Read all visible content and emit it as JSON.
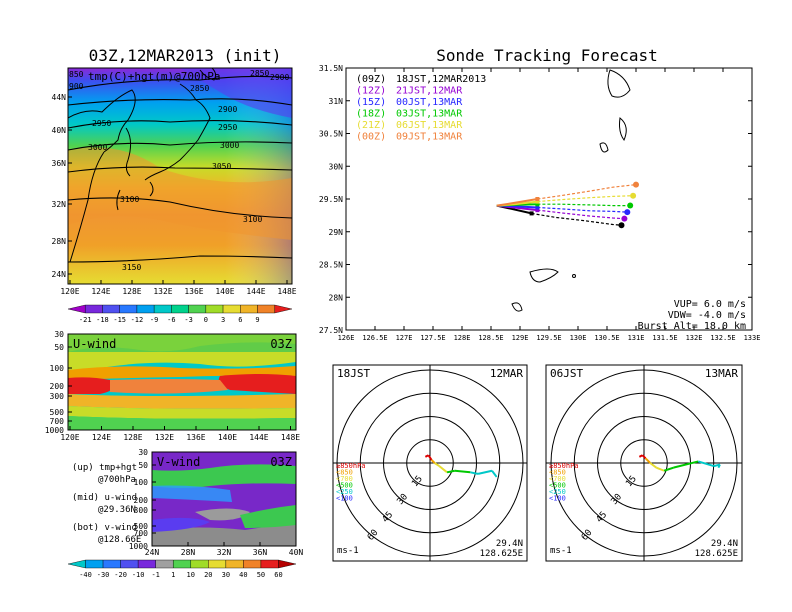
{
  "titles": {
    "left": "03Z,12MAR2013 (init)",
    "right": "Sonde Tracking Forecast"
  },
  "map_panel": {
    "subtitle": "tmp(C)+hgt(m)@700hPa",
    "lat_labels": [
      "44N",
      "40N",
      "36N",
      "32N",
      "28N",
      "24N"
    ],
    "lon_labels": [
      "120E",
      "124E",
      "128E",
      "132E",
      "136E",
      "140E",
      "144E",
      "148E"
    ],
    "contour_labels": [
      "2850",
      "2900",
      "2950",
      "2950",
      "3000",
      "3000",
      "3050",
      "3100",
      "3100",
      "3150",
      "2850",
      "2900"
    ],
    "corner_labels": [
      "850",
      "900"
    ],
    "colorbar_labels": [
      "-21",
      "-18",
      "-15",
      "-12",
      "-9",
      "-6",
      "-3",
      "0",
      "3",
      "6",
      "9"
    ]
  },
  "uwind_panel": {
    "title": "U-wind",
    "time": "03Z",
    "p_labels": [
      "30",
      "50",
      "100",
      "200",
      "300",
      "500",
      "700",
      "1000"
    ],
    "lon_labels": [
      "120E",
      "124E",
      "128E",
      "132E",
      "136E",
      "140E",
      "144E",
      "148E"
    ]
  },
  "vwind_panel": {
    "title": "V-wind",
    "time": "03Z",
    "p_labels": [
      "30",
      "50",
      "100",
      "200",
      "300",
      "500",
      "700",
      "1000"
    ],
    "lat_labels": [
      "24N",
      "28N",
      "32N",
      "36N",
      "40N"
    ],
    "colorbar_labels": [
      "-40",
      "-30",
      "-20",
      "-10",
      "-1",
      "1",
      "10",
      "20",
      "30",
      "40",
      "50",
      "60"
    ]
  },
  "footnote": {
    "lines": [
      [
        "(up) tmp+hgt",
        "@700hPa"
      ],
      [
        "(mid) u-wind",
        "@29.36N"
      ],
      [
        "(bot) v-wind",
        "@128.66E"
      ]
    ]
  },
  "track_panel": {
    "lat_labels": [
      "31.5N",
      "31N",
      "30.5N",
      "30N",
      "29.5N",
      "29N",
      "28.5N",
      "28N",
      "27.5N"
    ],
    "lon_labels": [
      "126E",
      "126.5E",
      "127E",
      "127.5E",
      "128E",
      "128.5E",
      "129E",
      "129.5E",
      "130E",
      "130.5E",
      "131E",
      "131.5E",
      "132E",
      "132.5E",
      "133E"
    ],
    "legend": [
      {
        "code": "(09Z)",
        "label": "18JST,12MAR2013",
        "color": "#000000"
      },
      {
        "code": "(12Z)",
        "label": "21JST,12MAR",
        "color": "#9400d3"
      },
      {
        "code": "(15Z)",
        "label": "00JST,13MAR",
        "color": "#2828ff"
      },
      {
        "code": "(18Z)",
        "label": "03JST,13MAR",
        "color": "#00c800"
      },
      {
        "code": "(21Z)",
        "label": "06JST,13MAR",
        "color": "#e6dc32"
      },
      {
        "code": "(00Z)",
        "label": "09JST,13MAR",
        "color": "#f0823c"
      }
    ],
    "params": [
      "VUP= 6.0 m/s",
      "VDW= -4.0 m/s",
      "Burst Alt= 18.0 km"
    ]
  },
  "hodographs": [
    {
      "time": "18JST",
      "date": "12MAR",
      "lat": "29.4N",
      "lon": "128.625E",
      "unit": "ms-1",
      "rings": [
        "15",
        "30",
        "45",
        "60"
      ],
      "levels": [
        {
          "label": "≥850hPa",
          "color": "#dc0000"
        },
        {
          "label": "<850",
          "color": "#f0a000"
        },
        {
          "label": "<700",
          "color": "#e6dc32"
        },
        {
          "label": "<500",
          "color": "#00c800"
        },
        {
          "label": "<250",
          "color": "#00c8c8"
        },
        {
          "label": "<100",
          "color": "#2828ff"
        }
      ]
    },
    {
      "time": "06JST",
      "date": "13MAR",
      "lat": "29.4N",
      "lon": "128.625E",
      "unit": "ms-1",
      "rings": [
        "15",
        "30",
        "45",
        "60"
      ],
      "levels": [
        {
          "label": "≥850hPa",
          "color": "#dc0000"
        },
        {
          "label": "<850",
          "color": "#f0a000"
        },
        {
          "label": "<700",
          "color": "#e6dc32"
        },
        {
          "label": "<500",
          "color": "#00c800"
        },
        {
          "label": "<250",
          "color": "#00c8c8"
        },
        {
          "label": "<100",
          "color": "#2828ff"
        }
      ]
    }
  ],
  "chart_data": [
    {
      "type": "heatmap",
      "title": "03Z,12MAR2013 (init)",
      "subtitle": "tmp(C)+hgt(m)@700hPa",
      "xlim": [
        120,
        149
      ],
      "ylim": [
        22,
        47
      ],
      "contour_interval_m": 50,
      "colorbar": [
        -21,
        -18,
        -15,
        -12,
        -9,
        -6,
        -3,
        0,
        3,
        6,
        9
      ]
    },
    {
      "type": "heatmap",
      "title": "U-wind",
      "x_range": [
        120,
        149
      ],
      "y_levels_hPa": [
        30,
        50,
        100,
        200,
        300,
        500,
        700,
        1000
      ]
    },
    {
      "type": "heatmap",
      "title": "V-wind",
      "x_range": [
        24,
        40
      ],
      "y_levels_hPa": [
        30,
        50,
        100,
        200,
        300,
        500,
        700,
        1000
      ],
      "colorbar": [
        -40,
        -30,
        -20,
        -10,
        -1,
        1,
        10,
        20,
        30,
        40,
        50,
        60
      ]
    },
    {
      "type": "line",
      "title": "Sonde Tracking Forecast",
      "xlim": [
        126,
        133
      ],
      "ylim": [
        27.5,
        31.5
      ],
      "series": [
        {
          "name": "(09Z) 18JST,12MAR2013",
          "color": "#000000",
          "x": [
            128.6,
            128.85,
            129.2,
            129.6,
            130.1,
            130.6,
            130.75
          ],
          "y": [
            29.4,
            29.35,
            29.28,
            29.22,
            29.17,
            29.11,
            29.1
          ]
        },
        {
          "name": "(12Z) 21JST,12MAR",
          "color": "#9400d3",
          "x": [
            128.6,
            128.9,
            129.3,
            129.7,
            130.2,
            130.6,
            130.8
          ],
          "y": [
            29.4,
            29.37,
            29.33,
            29.29,
            29.24,
            29.21,
            29.2
          ]
        },
        {
          "name": "(15Z) 00JST,13MAR",
          "color": "#2828ff",
          "x": [
            128.6,
            128.9,
            129.3,
            129.7,
            130.2,
            130.6,
            130.85
          ],
          "y": [
            29.4,
            29.39,
            29.37,
            29.35,
            29.32,
            29.31,
            29.3
          ]
        },
        {
          "name": "(18Z) 03JST,13MAR",
          "color": "#00c800",
          "x": [
            128.6,
            128.9,
            129.3,
            129.7,
            130.2,
            130.6,
            130.9
          ],
          "y": [
            29.4,
            29.41,
            29.42,
            29.42,
            29.41,
            29.4,
            29.4
          ]
        },
        {
          "name": "(21Z) 06JST,13MAR",
          "color": "#e6dc32",
          "x": [
            128.6,
            128.9,
            129.3,
            129.7,
            130.2,
            130.6,
            130.95
          ],
          "y": [
            29.4,
            29.42,
            29.46,
            29.49,
            29.52,
            29.54,
            29.55
          ]
        },
        {
          "name": "(00Z) 09JST,13MAR",
          "color": "#f0823c",
          "x": [
            128.6,
            128.9,
            129.3,
            129.7,
            130.2,
            130.6,
            131.0
          ],
          "y": [
            29.4,
            29.44,
            29.5,
            29.55,
            29.62,
            29.68,
            29.72
          ]
        }
      ]
    },
    {
      "type": "line",
      "title": "18JST 12MAR hodograph",
      "rings_ms": [
        15,
        30,
        45,
        60
      ],
      "u": [
        -3,
        -1,
        1,
        3,
        6,
        11,
        16,
        26,
        31,
        40,
        43
      ],
      "v": [
        4,
        5,
        2,
        0,
        -2,
        -6,
        -5,
        -6,
        -7,
        -5,
        -9
      ]
    },
    {
      "type": "line",
      "title": "06JST 13MAR hodograph",
      "rings_ms": [
        15,
        30,
        45,
        60
      ],
      "u": [
        -3,
        -1,
        1,
        4,
        8,
        13,
        19,
        35,
        45,
        49,
        48
      ],
      "v": [
        4,
        5,
        3,
        0,
        -3,
        -5,
        -3,
        1,
        -2,
        -1,
        -3
      ]
    }
  ]
}
